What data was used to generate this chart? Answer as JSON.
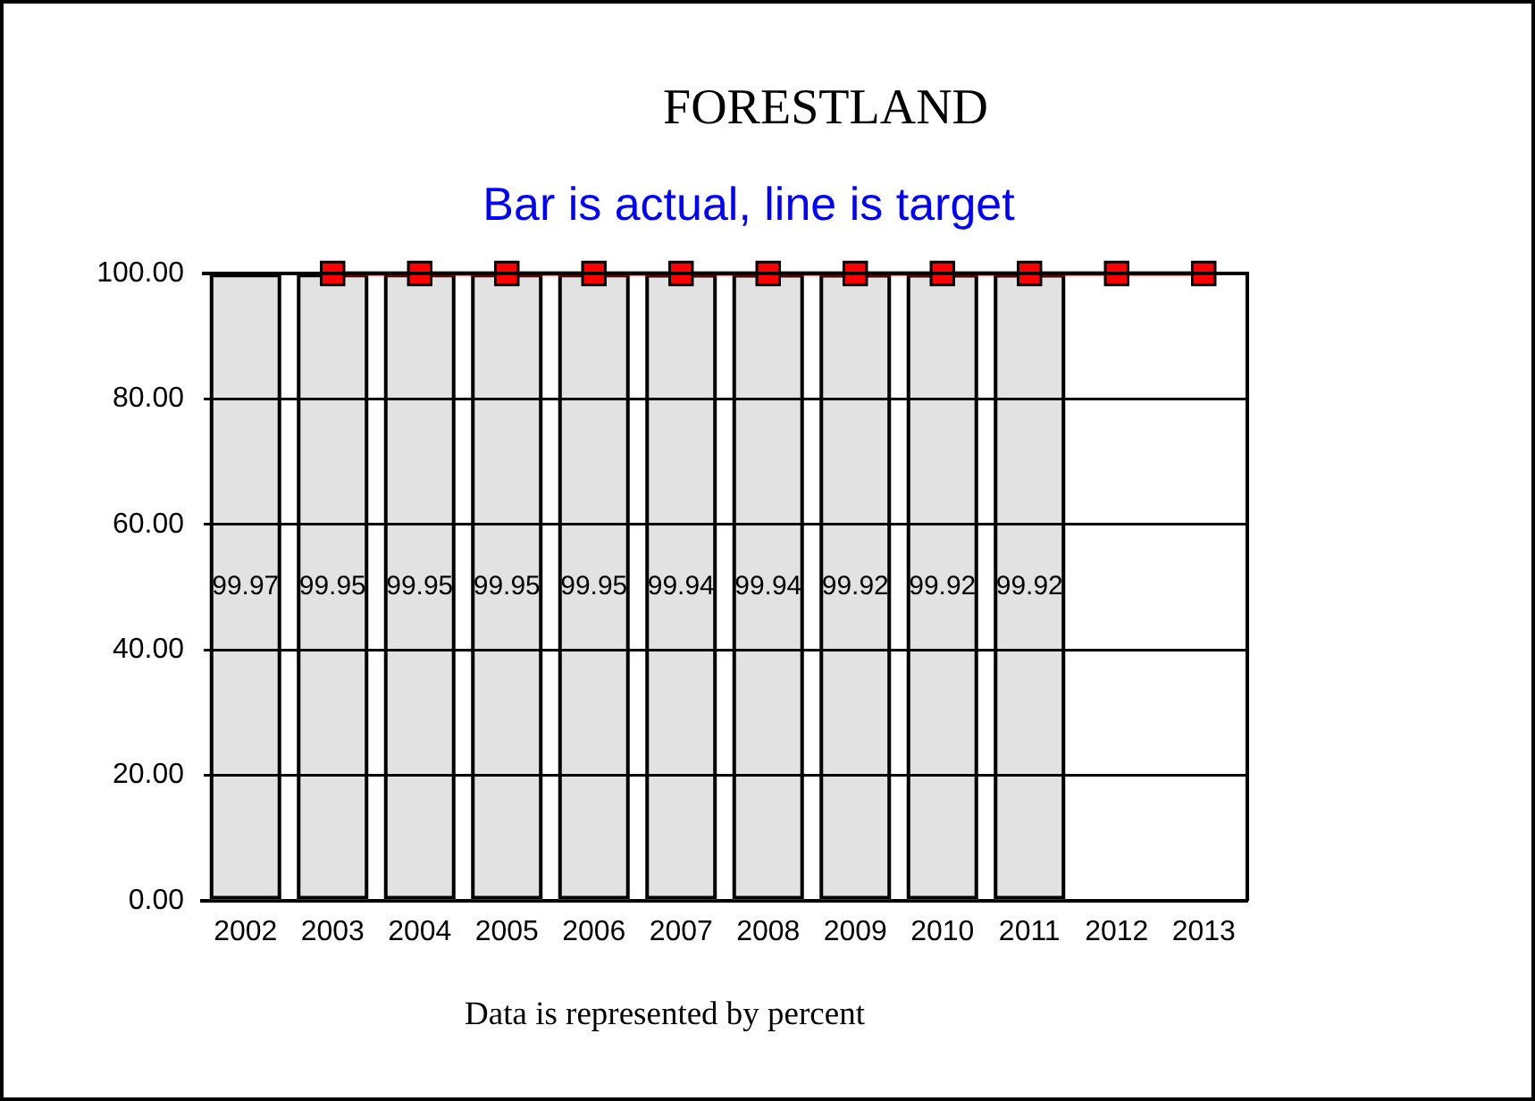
{
  "chart_data": {
    "type": "bar",
    "title": "FORESTLAND",
    "subtitle": "Bar is actual, line is target",
    "annotations": [
      "Data is represented by percent"
    ],
    "categories": [
      "2002",
      "2003",
      "2004",
      "2005",
      "2006",
      "2007",
      "2008",
      "2009",
      "2010",
      "2011",
      "2012",
      "2013"
    ],
    "series": [
      {
        "color": "#e2e2e2",
        "values": [
          99.97,
          99.95,
          99.95,
          99.95,
          99.95,
          99.94,
          99.94,
          99.92,
          99.92,
          99.92,
          null,
          null
        ],
        "value_labels": [
          "99.97",
          "99.95",
          "99.95",
          "99.95",
          "99.95",
          "99.94",
          "99.94",
          "99.92",
          "99.92",
          "99.92",
          null,
          null
        ]
      },
      {
        "type": "line",
        "color": "#ff0000",
        "values": [
          null,
          100,
          100,
          100,
          100,
          100,
          100,
          100,
          100,
          100,
          100,
          100
        ]
      }
    ],
    "ylim": [
      0,
      100
    ],
    "yticks": [
      {
        "value": 0,
        "label": "0.00"
      },
      {
        "value": 20,
        "label": "20.00"
      },
      {
        "value": 40,
        "label": "40.00"
      },
      {
        "value": 60,
        "label": "60.00"
      },
      {
        "value": 80,
        "label": "80.00"
      },
      {
        "value": 100,
        "label": "100.00"
      }
    ],
    "grid": "y",
    "legend": false,
    "marker": "square"
  }
}
